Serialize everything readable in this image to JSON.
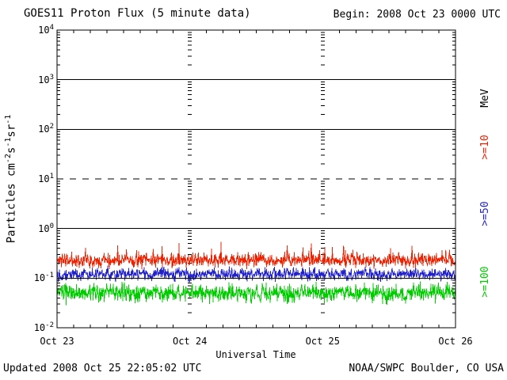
{
  "page": {
    "title": "GOES11 Proton Flux (5 minute data)",
    "begin_label": "Begin: 2008 Oct 23 0000 UTC",
    "updated_label": "Updated 2008 Oct 25 22:05:02 UTC",
    "source_label": "NOAA/SWPC Boulder, CO USA"
  },
  "chart_data": {
    "type": "line",
    "y_scale": "log",
    "title": "GOES11 Proton Flux (5 minute data)",
    "begin": "2008 Oct 23 0000 UTC",
    "updated": "2008 Oct 25 22:05:02 UTC",
    "source": "NOAA/SWPC Boulder, CO USA",
    "cadence": "5 minute",
    "xlabel": "Universal Time",
    "ylabel": "Particles cm-2s-1sr-1",
    "ylabel_parts": [
      {
        "t": "Particles cm"
      },
      {
        "t": "-2",
        "sup": true
      },
      {
        "t": "s"
      },
      {
        "t": "-1",
        "sup": true
      },
      {
        "t": "sr"
      },
      {
        "t": "-1",
        "sup": true
      }
    ],
    "y_unit": "MeV",
    "y_min_exp": -2,
    "y_max_exp": 4,
    "y_ticks": [
      {
        "base": "10",
        "exp": "4"
      },
      {
        "base": "10",
        "exp": "3"
      },
      {
        "base": "10",
        "exp": "2"
      },
      {
        "base": "10",
        "exp": "1"
      },
      {
        "base": "10",
        "exp": "0"
      },
      {
        "base": "10",
        "exp": "-1"
      },
      {
        "base": "10",
        "exp": "-2"
      }
    ],
    "x_ticks": [
      "Oct 23",
      "Oct 24",
      "Oct 25",
      "Oct 26"
    ],
    "x_days": 3,
    "x_minor_ticks_per_day": 8,
    "gridlines": [
      {
        "exp": 3,
        "style": "solid"
      },
      {
        "exp": 2,
        "style": "solid"
      },
      {
        "exp": 1,
        "style": "dashed"
      },
      {
        "exp": 0,
        "style": "solid"
      },
      {
        "exp": -1,
        "style": "solid"
      }
    ],
    "right_labels": [
      {
        "text": "MeV",
        "color": "#000000"
      },
      {
        "text": ">=10",
        "color": "#ee2200"
      },
      {
        "text": ">=50",
        "color": "#2222cc"
      },
      {
        "text": ">=100",
        "color": "#00cc00"
      }
    ],
    "series": [
      {
        "label": ">=10 MeV",
        "color": "#ee2200",
        "approx_mean_flux": 0.22,
        "approx_min_flux": 0.12,
        "approx_max_flux": 0.7,
        "base_log": -0.64,
        "sigma_log": 0.1,
        "clamp_log": [
          -0.92,
          -0.13
        ],
        "spike_prob": 0.05,
        "spike_max_log": 0.3,
        "seed": 11
      },
      {
        "label": ">=50 MeV",
        "color": "#2222cc",
        "approx_mean_flux": 0.12,
        "approx_min_flux": 0.06,
        "approx_max_flux": 0.22,
        "base_log": -0.92,
        "sigma_log": 0.09,
        "clamp_log": [
          -1.2,
          -0.64
        ],
        "spike_prob": 0,
        "spike_max_log": 0,
        "seed": 22
      },
      {
        "label": ">=100 MeV",
        "color": "#00cc00",
        "approx_mean_flux": 0.05,
        "approx_min_flux": 0.024,
        "approx_max_flux": 0.1,
        "base_log": -1.3,
        "sigma_log": 0.13,
        "clamp_log": [
          -1.62,
          -1.0
        ],
        "spike_prob": 0,
        "spike_max_log": 0,
        "seed": 33
      }
    ]
  }
}
